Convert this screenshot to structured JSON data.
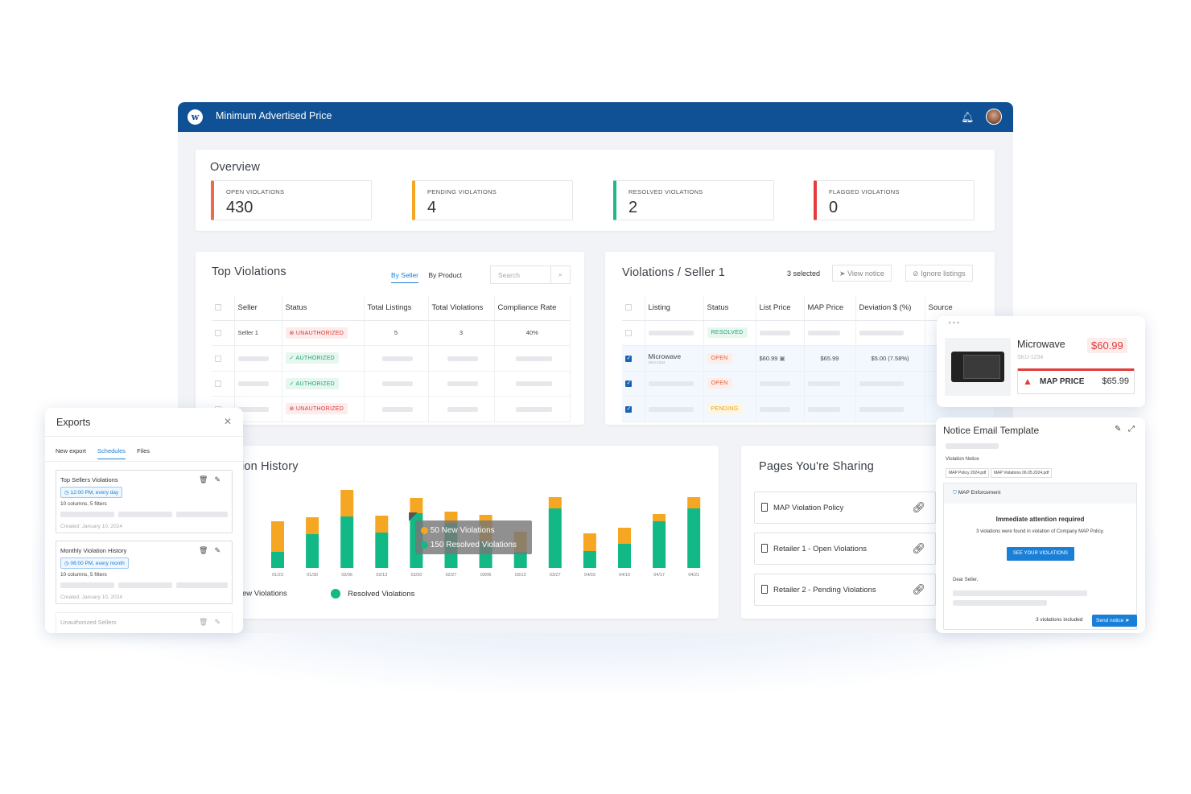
{
  "header": {
    "logo": "w",
    "title": "Minimum Advertised Price"
  },
  "overview": {
    "title": "Overview",
    "stats": [
      {
        "label": "OPEN VIOLATIONS",
        "value": "430",
        "color": "#ef6a4c"
      },
      {
        "label": "PENDING VIOLATIONS",
        "value": "4",
        "color": "#f5a623"
      },
      {
        "label": "RESOLVED VIOLATIONS",
        "value": "2",
        "color": "#1fb88a"
      },
      {
        "label": "FLAGGED VIOLATIONS",
        "value": "0",
        "color": "#e63b3b"
      }
    ]
  },
  "top_violations": {
    "title": "Top Violations",
    "tabs": [
      "By Seller",
      "By Product"
    ],
    "search_placeholder": "Search",
    "columns": [
      "Seller",
      "Status",
      "Total Listings",
      "Total Violations",
      "Compliance Rate"
    ],
    "row1": {
      "seller": "Seller 1",
      "status": "UNAUTHORIZED",
      "listings": "5",
      "violations": "3",
      "rate": "40%"
    },
    "statuses": [
      "AUTHORIZED",
      "AUTHORIZED",
      "UNAUTHORIZED"
    ]
  },
  "seller_violations": {
    "title": "Violations / Seller 1",
    "selected": "3 selected",
    "view_notice": "View notice",
    "ignore_listings": "Ignore listings",
    "columns": [
      "Listing",
      "Status",
      "List Price",
      "MAP Price",
      "Deviation $ (%)",
      "Source"
    ],
    "statuses": [
      "RESOLVED",
      "OPEN",
      "OPEN",
      "PENDING"
    ],
    "row2": {
      "listing": "Microwave",
      "sku": "SKU-1234",
      "list_price": "$60.99",
      "map_price": "$65.99",
      "deviation": "$5.00 (7.58%)"
    }
  },
  "history": {
    "title": "ion History",
    "tooltip": {
      "new": "50 New Violations",
      "resolved": "150 Resolved Violations"
    },
    "legend": [
      "ew Violations",
      "Resolved Violations"
    ],
    "colors": {
      "new": "#f5a623",
      "resolved": "#12b886"
    }
  },
  "chart_data": {
    "type": "bar",
    "stacked": true,
    "categories": [
      "01/23",
      "01/30",
      "02/06",
      "02/13",
      "02/20",
      "02/27",
      "03/06",
      "03/13",
      "03/27",
      "04/03",
      "04/10",
      "04/17",
      "04/21"
    ],
    "series": [
      {
        "name": "Resolved Violations",
        "values": [
          20,
          42,
          64,
          44,
          68,
          56,
          32,
          20,
          74,
          21,
          30,
          58,
          74
        ]
      },
      {
        "name": "New Violations",
        "values": [
          38,
          21,
          33,
          21,
          19,
          14,
          34,
          25,
          14,
          22,
          20,
          9,
          14
        ]
      }
    ]
  },
  "sharing": {
    "title": "Pages You're Sharing",
    "pages": [
      "MAP Violation Policy",
      "Retailer 1 - Open Violations",
      "Retailer 2 - Pending Violations"
    ]
  },
  "product_card": {
    "name": "Microwave",
    "sku": "SKU-1234",
    "price": "$60.99",
    "map_label": "MAP PRICE",
    "map_price": "$65.99"
  },
  "notice": {
    "title": "Notice Email Template",
    "subject": "Violation Notice",
    "attachments": [
      "MAP Policy 2024.pdf",
      "MAP Violations 06.05.2024.pdf"
    ],
    "brand": "MAP Enforcement",
    "heading": "Immediate attention required",
    "body": "3 violations were found in violation of Company MAP Policy.",
    "cta": "SEE YOUR VIOLATIONS",
    "greeting": "Dear Seller,",
    "included": "3 violations included",
    "send": "Send notice"
  },
  "exports": {
    "title": "Exports",
    "tabs": [
      "New export",
      "Schedules",
      "Files"
    ],
    "items": [
      {
        "title": "Top Sellers Violations",
        "schedule": "12:00 PM, every day",
        "meta": "10 columns, 5 filters",
        "created": "Created: January 10, 2024"
      },
      {
        "title": "Monthly Violation History",
        "schedule": "06:00 PM, every month",
        "meta": "10 columns, 5 filters",
        "created": "Created: January 10, 2024"
      },
      {
        "title": "Unauthorized Sellers"
      }
    ]
  }
}
